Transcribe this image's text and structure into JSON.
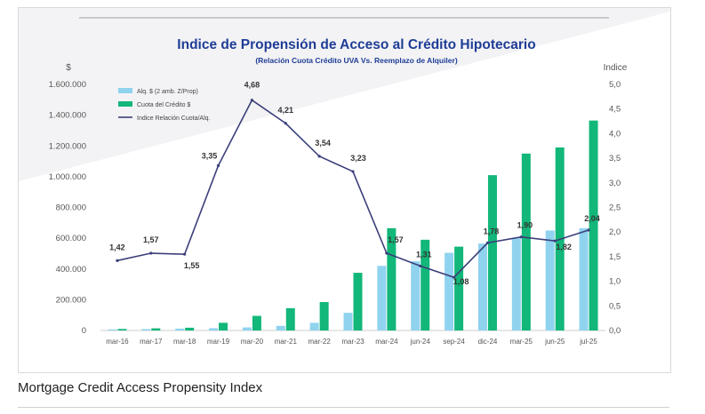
{
  "caption": "Mortgage Credit Access Propensity Index",
  "chart_data": {
    "type": "bar+line",
    "title": "Indice de Propensión de Acceso al Crédito Hipotecario",
    "subtitle": "(Relación Cuota Crédito UVA  Vs. Reemplazo de Alquiler)",
    "ylabel_left": "$",
    "ylabel_right": "Indice",
    "categories": [
      "mar-16",
      "mar-17",
      "mar-18",
      "mar-19",
      "mar-20",
      "mar-21",
      "mar-22",
      "mar-23",
      "mar-24",
      "jun-24",
      "sep-24",
      "dic-24",
      "mar-25",
      "jun-25",
      "jul-25"
    ],
    "left_ylim": [
      0,
      1600000
    ],
    "left_ticks": [
      0,
      200000,
      400000,
      600000,
      800000,
      1000000,
      1200000,
      1400000,
      1600000
    ],
    "left_tick_labels": [
      "0",
      "200.000",
      "400.000",
      "600.000",
      "800.000",
      "1.000.000",
      "1.200.000",
      "1.400.000",
      "1.600.000"
    ],
    "right_ylim": [
      0,
      5
    ],
    "right_ticks": [
      0,
      0.5,
      1,
      1.5,
      2,
      2.5,
      3,
      3.5,
      4,
      4.5,
      5
    ],
    "right_tick_labels": [
      "0,0",
      "0,5",
      "1,0",
      "1,5",
      "2,0",
      "2,5",
      "3,0",
      "3,5",
      "4,0",
      "4,5",
      "5,0"
    ],
    "series": [
      {
        "name": "Alq. $ (2 amb. Z/Prop)",
        "kind": "bar",
        "color": "#8fd3ef",
        "values": [
          7000,
          9000,
          12000,
          15000,
          20000,
          30000,
          50000,
          115000,
          420000,
          450000,
          505000,
          565000,
          600000,
          650000,
          665000
        ]
      },
      {
        "name": "Cuota del Crédito $",
        "kind": "bar",
        "color": "#12b779",
        "values": [
          10000,
          14000,
          18000,
          50000,
          95000,
          145000,
          185000,
          375000,
          665000,
          590000,
          545000,
          1010000,
          1150000,
          1190000,
          1365000
        ]
      },
      {
        "name": "Indice Relación Cuota/Alq.",
        "kind": "line",
        "color": "#3b3f7a",
        "axis": "right",
        "values": [
          1.42,
          1.57,
          1.55,
          3.35,
          4.68,
          4.21,
          3.54,
          3.23,
          1.57,
          1.31,
          1.08,
          1.78,
          1.9,
          1.82,
          2.04
        ],
        "labels": [
          "1,42",
          "1,57",
          "1,55",
          "3,35",
          "4,68",
          "4,21",
          "3,54",
          "3,23",
          "1,57",
          "1,31",
          "1,08",
          "1,78",
          "1,90",
          "1,82",
          "2,04"
        ]
      }
    ],
    "legend_position": "top-left"
  }
}
